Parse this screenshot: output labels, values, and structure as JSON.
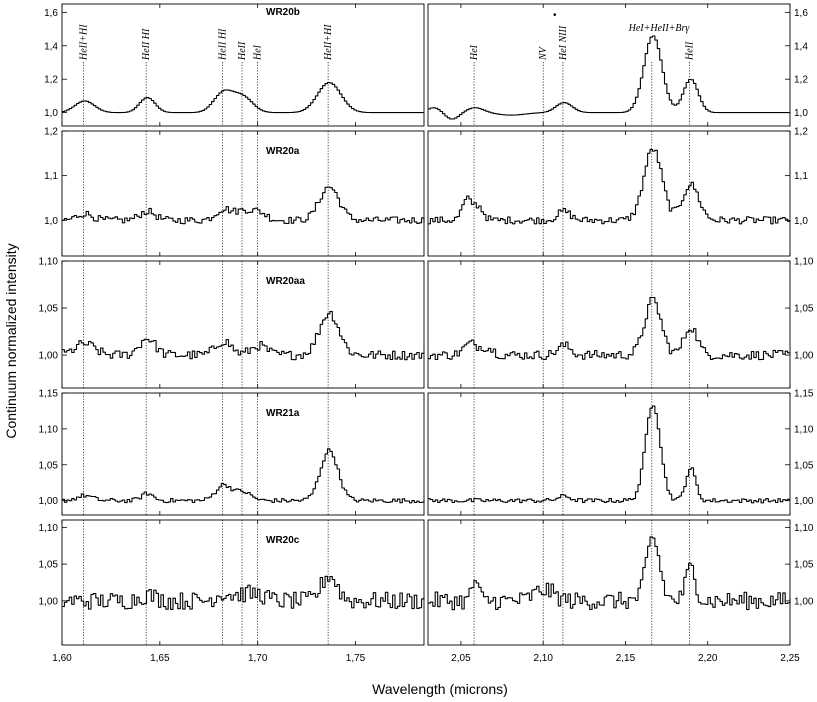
{
  "chart_data": {
    "type": "line",
    "xlabel": "Wavelength (microns)",
    "ylabel": "Continuum normalized intensity",
    "x_segments": [
      {
        "xlim": [
          1.6,
          1.785
        ],
        "ticks": [
          1.6,
          1.65,
          1.7,
          1.75
        ],
        "tick_labels": [
          "1,60",
          "1,65",
          "1,70",
          "1,75"
        ]
      },
      {
        "xlim": [
          2.03,
          2.25
        ],
        "ticks": [
          2.05,
          2.1,
          2.15,
          2.2,
          2.25
        ],
        "tick_labels": [
          "2,05",
          "2,10",
          "2,15",
          "2,20",
          "2,25"
        ]
      }
    ],
    "line_ids": [
      {
        "wl": 1.611,
        "label": "HeII+HI",
        "panel": 0
      },
      {
        "wl": 1.643,
        "label": "HeII HI",
        "panel": 0
      },
      {
        "wl": 1.682,
        "label": "HeII HI",
        "panel": 0
      },
      {
        "wl": 1.692,
        "label": "HeII",
        "panel": 0
      },
      {
        "wl": 1.7,
        "label": "HeI",
        "panel": 0
      },
      {
        "wl": 1.736,
        "label": "HeII+HI",
        "panel": 0
      },
      {
        "wl": 2.058,
        "label": "HeI",
        "panel": 0
      },
      {
        "wl": 2.1,
        "label": "NV",
        "panel": 0
      },
      {
        "wl": 2.112,
        "label": "HeI NIII",
        "panel": 0
      },
      {
        "wl": 2.166,
        "label": "HeI+HeII+Brγ",
        "panel": 0
      },
      {
        "wl": 2.189,
        "label": "HeII",
        "panel": 0
      }
    ],
    "star_marker": {
      "wl": 2.107,
      "symbol": "•"
    },
    "panels": [
      {
        "name": "WR20b",
        "ylim": [
          0.92,
          1.65
        ],
        "yticks": [
          1.0,
          1.2,
          1.4,
          1.6
        ],
        "ytick_labels": [
          "1,0",
          "1,2",
          "1,4",
          "1,6"
        ],
        "baseline": 1.0,
        "noise": 0.0,
        "lines": [
          [
            1.611,
            0.07,
            0.005
          ],
          [
            1.643,
            0.09,
            0.004
          ],
          [
            1.682,
            0.12,
            0.005
          ],
          [
            1.692,
            0.09,
            0.005
          ],
          [
            1.736,
            0.18,
            0.006
          ],
          [
            2.033,
            0.03,
            0.004
          ],
          [
            2.044,
            -0.04,
            0.004
          ],
          [
            2.058,
            0.03,
            0.005
          ],
          [
            2.08,
            -0.015,
            0.008
          ],
          [
            2.112,
            0.06,
            0.005
          ],
          [
            2.166,
            0.46,
            0.0055
          ],
          [
            2.189,
            0.2,
            0.0045
          ]
        ]
      },
      {
        "name": "WR20a",
        "ylim": [
          0.92,
          1.2
        ],
        "yticks": [
          1.0,
          1.1,
          1.2
        ],
        "ytick_labels": [
          "1,0",
          "1,1",
          "1,2"
        ],
        "baseline": 1.0,
        "noise": 0.008,
        "lines": [
          [
            1.611,
            0.015,
            0.004
          ],
          [
            1.643,
            0.02,
            0.004
          ],
          [
            1.682,
            0.025,
            0.004
          ],
          [
            1.692,
            0.02,
            0.004
          ],
          [
            1.7,
            0.018,
            0.004
          ],
          [
            1.736,
            0.075,
            0.005
          ],
          [
            2.053,
            0.045,
            0.003
          ],
          [
            2.06,
            0.03,
            0.003
          ],
          [
            2.112,
            0.02,
            0.004
          ],
          [
            2.166,
            0.16,
            0.0055
          ],
          [
            2.189,
            0.08,
            0.005
          ]
        ]
      },
      {
        "name": "WR20aa",
        "ylim": [
          0.965,
          1.1
        ],
        "yticks": [
          1.0,
          1.05,
          1.1
        ],
        "ytick_labels": [
          "1,00",
          "1,05",
          "1,10"
        ],
        "baseline": 1.0,
        "noise": 0.005,
        "lines": [
          [
            1.611,
            0.012,
            0.005
          ],
          [
            1.643,
            0.018,
            0.004
          ],
          [
            1.682,
            0.015,
            0.004
          ],
          [
            1.7,
            0.01,
            0.004
          ],
          [
            1.736,
            0.045,
            0.005
          ],
          [
            2.055,
            0.012,
            0.004
          ],
          [
            2.065,
            0.008,
            0.004
          ],
          [
            2.112,
            0.01,
            0.004
          ],
          [
            2.166,
            0.058,
            0.005
          ],
          [
            2.189,
            0.03,
            0.004
          ]
        ]
      },
      {
        "name": "WR21a",
        "ylim": [
          0.98,
          1.15
        ],
        "yticks": [
          1.0,
          1.05,
          1.1,
          1.15
        ],
        "ytick_labels": [
          "1,00",
          "1,05",
          "1,10",
          "1,15"
        ],
        "baseline": 1.0,
        "noise": 0.003,
        "lines": [
          [
            1.611,
            0.007,
            0.004
          ],
          [
            1.643,
            0.01,
            0.003
          ],
          [
            1.682,
            0.022,
            0.004
          ],
          [
            1.692,
            0.012,
            0.004
          ],
          [
            1.736,
            0.07,
            0.0045
          ],
          [
            2.112,
            0.006,
            0.004
          ],
          [
            2.166,
            0.135,
            0.0045
          ],
          [
            2.189,
            0.045,
            0.003
          ]
        ]
      },
      {
        "name": "WR20c",
        "ylim": [
          0.94,
          1.11
        ],
        "yticks": [
          1.0,
          1.05,
          1.1
        ],
        "ytick_labels": [
          "1,00",
          "1,05",
          "1,10"
        ],
        "baseline": 1.0,
        "noise": 0.012,
        "lines": [
          [
            1.643,
            0.008,
            0.004
          ],
          [
            1.682,
            0.01,
            0.004
          ],
          [
            1.692,
            0.008,
            0.004
          ],
          [
            1.7,
            0.008,
            0.004
          ],
          [
            1.736,
            0.035,
            0.004
          ],
          [
            2.058,
            0.028,
            0.002
          ],
          [
            2.1,
            0.015,
            0.006
          ],
          [
            2.166,
            0.085,
            0.004
          ],
          [
            2.189,
            0.045,
            0.003
          ]
        ]
      }
    ]
  }
}
